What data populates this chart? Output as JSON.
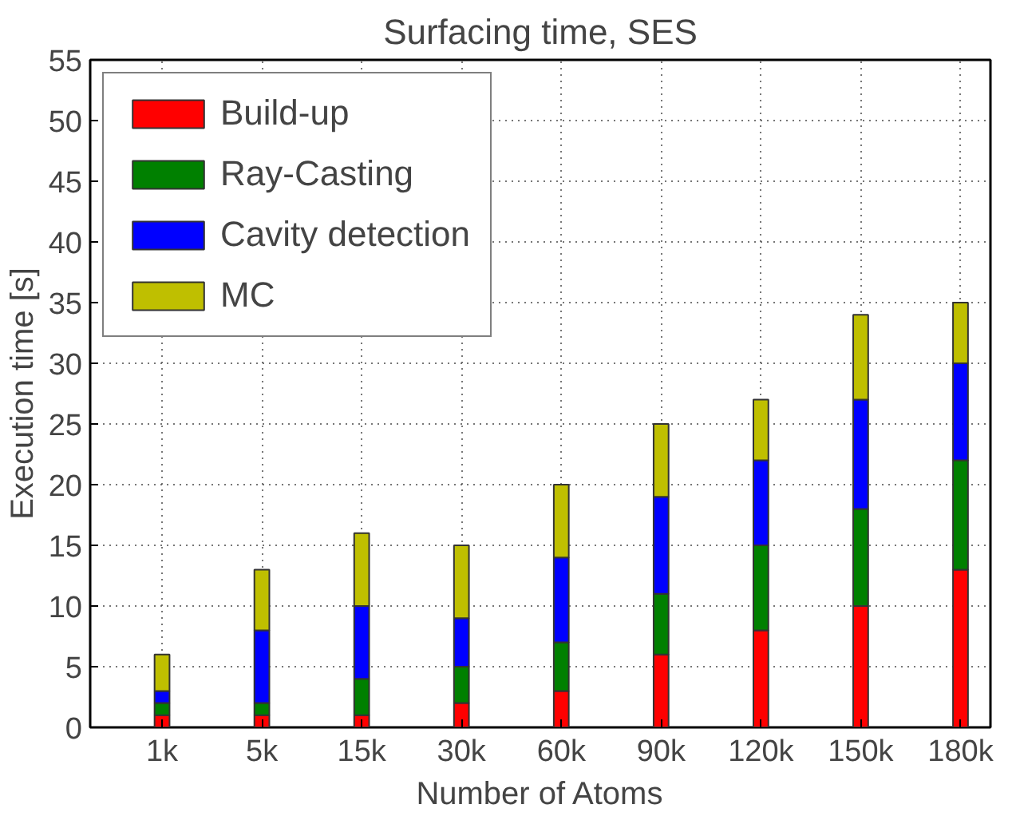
{
  "chart_data": {
    "type": "bar",
    "title": "Surfacing time, SES",
    "xlabel": "Number of Atoms",
    "ylabel": "Execution time [s]",
    "categories": [
      "1k",
      "5k",
      "15k",
      "30k",
      "60k",
      "90k",
      "120k",
      "150k",
      "180k"
    ],
    "stacked": true,
    "series": [
      {
        "name": "Build-up",
        "color": "#ff0000",
        "values": [
          1,
          1,
          1,
          2,
          3,
          6,
          8,
          10,
          13
        ]
      },
      {
        "name": "Ray-Casting",
        "color": "#008000",
        "values": [
          1,
          1,
          3,
          3,
          4,
          5,
          7,
          8,
          9
        ]
      },
      {
        "name": "Cavity detection",
        "color": "#0000ff",
        "values": [
          1,
          6,
          6,
          4,
          7,
          8,
          7,
          9,
          8
        ]
      },
      {
        "name": "MC",
        "color": "#bfbf00",
        "values": [
          3,
          5,
          6,
          6,
          6,
          6,
          5,
          7,
          5
        ]
      }
    ],
    "ylim": [
      0,
      55
    ],
    "yticks": [
      0,
      5,
      10,
      15,
      20,
      25,
      30,
      35,
      40,
      45,
      50,
      55
    ],
    "grid": true,
    "legend": "top left"
  }
}
